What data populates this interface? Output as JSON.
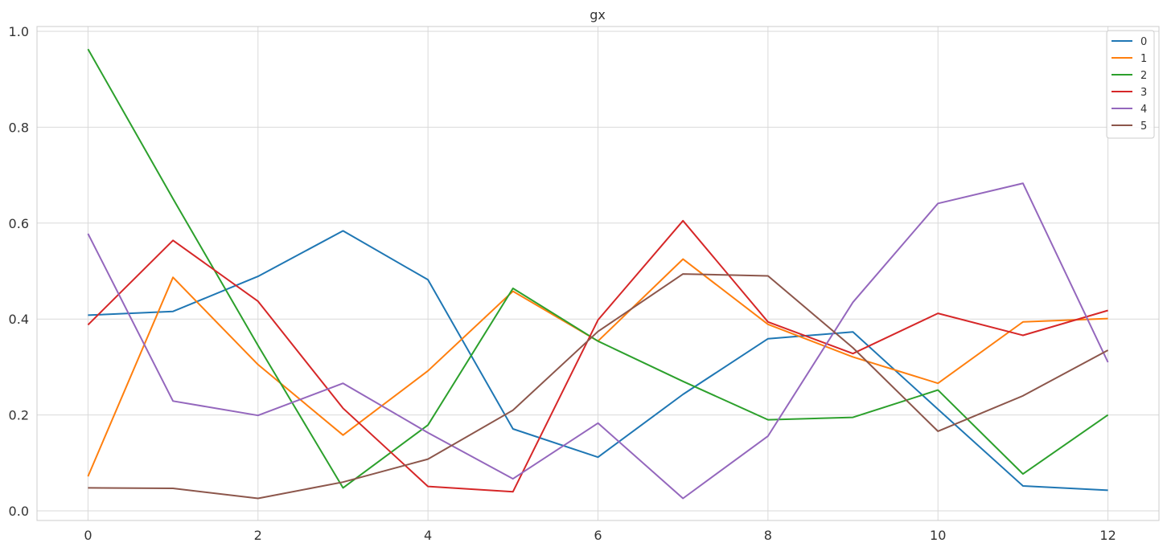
{
  "chart_data": {
    "type": "line",
    "title": "gx",
    "xlabel": "",
    "ylabel": "",
    "x": [
      0,
      1,
      2,
      3,
      4,
      5,
      6,
      7,
      8,
      9,
      10,
      11,
      12
    ],
    "xlim": [
      -0.6,
      12.6
    ],
    "ylim": [
      -0.02,
      1.01
    ],
    "xticks": [
      0,
      2,
      4,
      6,
      8,
      10,
      12
    ],
    "yticks": [
      0.0,
      0.2,
      0.4,
      0.6,
      0.8,
      1.0
    ],
    "xtick_labels": [
      "0",
      "2",
      "4",
      "6",
      "8",
      "10",
      "12"
    ],
    "ytick_labels": [
      "0.0",
      "0.2",
      "0.4",
      "0.6",
      "0.8",
      "1.0"
    ],
    "grid": true,
    "legend_position": "top-right",
    "series": [
      {
        "name": "0",
        "color": "#1f77b4",
        "values": [
          0.408,
          0.416,
          0.489,
          0.584,
          0.482,
          0.171,
          0.112,
          0.243,
          0.359,
          0.373,
          0.212,
          0.052,
          0.043
        ]
      },
      {
        "name": "1",
        "color": "#ff7f0e",
        "values": [
          0.072,
          0.487,
          0.305,
          0.158,
          0.292,
          0.458,
          0.354,
          0.525,
          0.389,
          0.321,
          0.266,
          0.394,
          0.401
        ]
      },
      {
        "name": "2",
        "color": "#2ca02c",
        "values": [
          0.963,
          0.651,
          0.345,
          0.048,
          0.179,
          0.464,
          0.354,
          0.27,
          0.19,
          0.195,
          0.252,
          0.077,
          0.2
        ]
      },
      {
        "name": "3",
        "color": "#d62728",
        "values": [
          0.388,
          0.564,
          0.437,
          0.214,
          0.051,
          0.04,
          0.398,
          0.605,
          0.394,
          0.328,
          0.412,
          0.366,
          0.418
        ]
      },
      {
        "name": "4",
        "color": "#9467bd",
        "values": [
          0.578,
          0.229,
          0.199,
          0.266,
          0.163,
          0.067,
          0.183,
          0.026,
          0.156,
          0.435,
          0.641,
          0.683,
          0.31
        ]
      },
      {
        "name": "5",
        "color": "#8c564b",
        "values": [
          0.048,
          0.047,
          0.026,
          0.06,
          0.108,
          0.21,
          0.374,
          0.494,
          0.49,
          0.34,
          0.166,
          0.24,
          0.335
        ]
      }
    ]
  }
}
